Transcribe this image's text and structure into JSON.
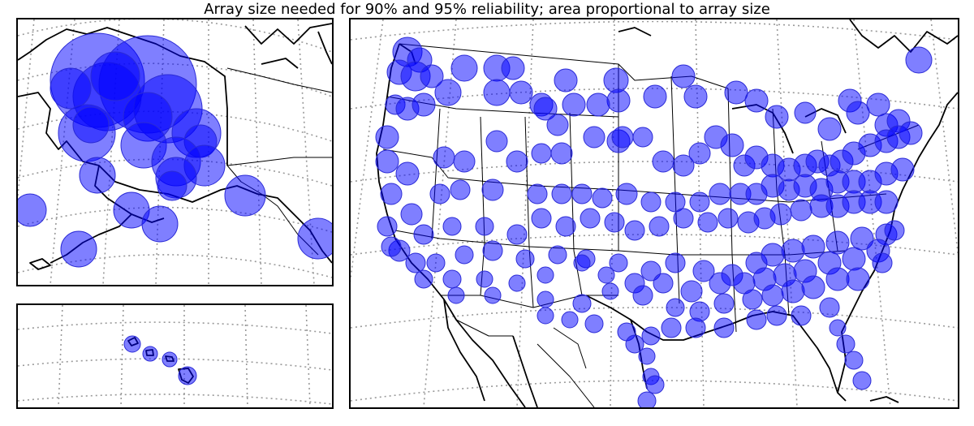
{
  "title": "Array size needed for 90% and 95% reliability; area proportional to array size",
  "colors": {
    "marker_fill": "#0000ff",
    "marker_stroke": "#2b2bd6",
    "marker_opacity": 0.5,
    "graticule": "#999999",
    "coastline": "#000000"
  },
  "panels": {
    "alaska": {
      "label": ""
    },
    "hawaii": {
      "label": ""
    },
    "conus": {
      "label": ""
    }
  }
}
